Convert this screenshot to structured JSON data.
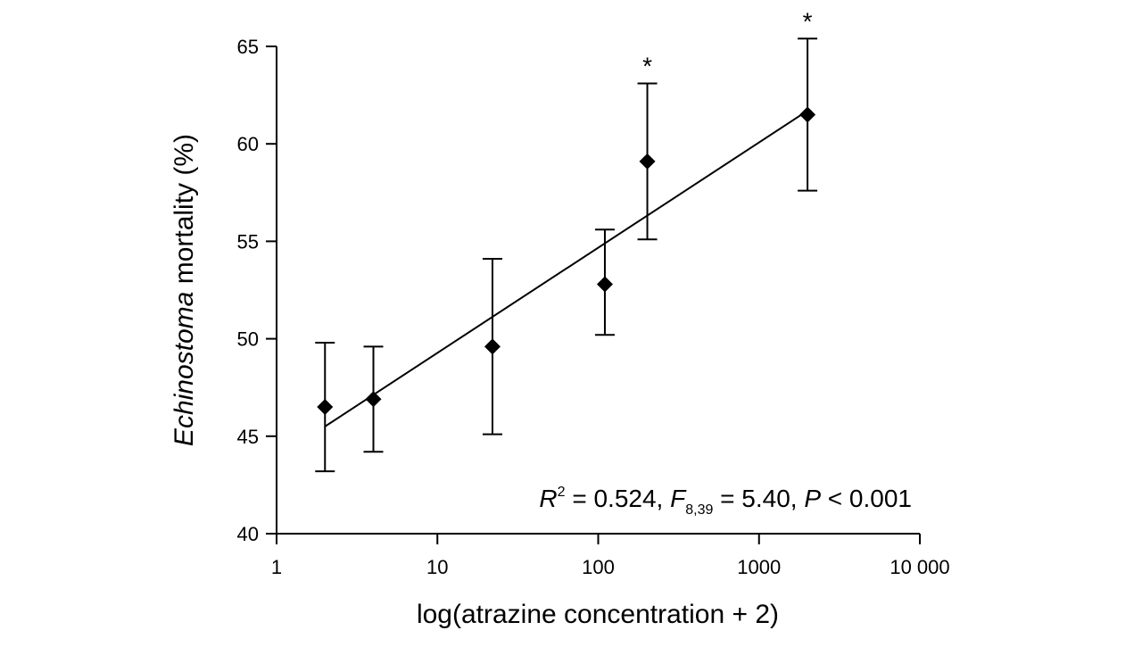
{
  "chart_data": {
    "type": "scatter",
    "xlabel": "log(atrazine concentration + 2)",
    "ylabel_italic": "Echinostoma",
    "ylabel_rest": " mortality (%)",
    "x_scale": "log",
    "xlim": [
      1,
      10000
    ],
    "ylim": [
      40,
      65
    ],
    "x_ticks": [
      1,
      10,
      100,
      1000,
      10000
    ],
    "x_tick_labels": [
      "1",
      "10",
      "100",
      "1000",
      "10 000"
    ],
    "y_ticks": [
      40,
      45,
      50,
      55,
      60,
      65
    ],
    "y_tick_labels": [
      "40",
      "45",
      "50",
      "55",
      "60",
      "65"
    ],
    "grid": false,
    "points": [
      {
        "x": 2,
        "y": 46.5,
        "err_low": 43.2,
        "err_high": 49.8,
        "significant": false
      },
      {
        "x": 4,
        "y": 46.9,
        "err_low": 44.2,
        "err_high": 49.6,
        "significant": false
      },
      {
        "x": 22,
        "y": 49.6,
        "err_low": 45.1,
        "err_high": 54.1,
        "significant": false
      },
      {
        "x": 110,
        "y": 52.8,
        "err_low": 50.2,
        "err_high": 55.6,
        "significant": false
      },
      {
        "x": 202,
        "y": 59.1,
        "err_low": 55.1,
        "err_high": 63.1,
        "significant": true
      },
      {
        "x": 2002,
        "y": 61.5,
        "err_low": 57.6,
        "err_high": 65.4,
        "significant": true
      }
    ],
    "significance_marker": "*",
    "fit_line": {
      "x_start": 2,
      "y_start": 45.5,
      "x_end": 2002,
      "y_end": 61.7
    },
    "annotation": {
      "r_symbol": "R",
      "r_exp": "2",
      "r_value": " = 0.524, ",
      "f_symbol": "F",
      "f_sub": "8,39",
      "f_value": " = 5.40, ",
      "p_symbol": "P",
      "p_value": " < 0.001"
    }
  }
}
